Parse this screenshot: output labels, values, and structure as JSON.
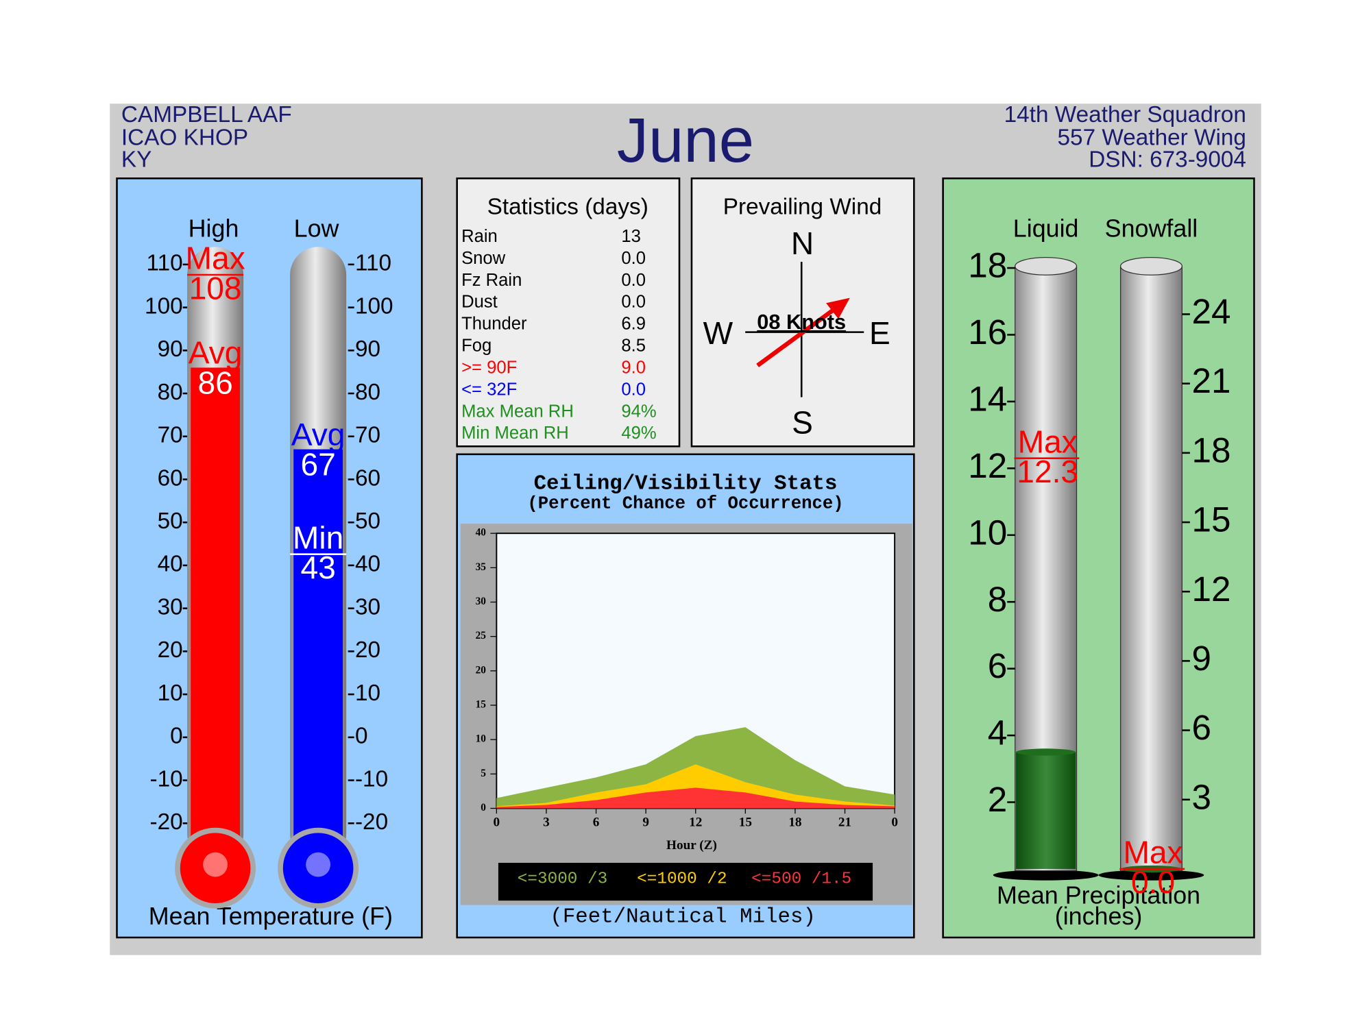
{
  "header": {
    "station": [
      "CAMPBELL AAF",
      "ICAO KHOP",
      "KY"
    ],
    "title": "June",
    "unit": [
      "14th Weather Squadron",
      "557 Weather Wing",
      "DSN: 673-9004"
    ]
  },
  "statistics": {
    "title": "Statistics (days)",
    "rows": [
      {
        "label": "Rain",
        "value": "13",
        "color": "#000000"
      },
      {
        "label": "Snow",
        "value": "0.0",
        "color": "#000000"
      },
      {
        "label": "Fz Rain",
        "value": "0.0",
        "color": "#000000"
      },
      {
        "label": "Dust",
        "value": "0.0",
        "color": "#000000"
      },
      {
        "label": "Thunder",
        "value": "6.9",
        "color": "#000000"
      },
      {
        "label": "Fog",
        "value": "8.5",
        "color": "#000000"
      },
      {
        "label": ">= 90F",
        "value": "9.0",
        "color": "#ff0000"
      },
      {
        "label": "<= 32F",
        "value": "0.0",
        "color": "#0000ff"
      },
      {
        "label": "Max Mean RH",
        "value": "94%",
        "color": "#1f8f1f"
      },
      {
        "label": "Min Mean RH",
        "value": "49%",
        "color": "#1f8f1f"
      }
    ]
  },
  "wind": {
    "title": "Prevailing Wind",
    "north": "N",
    "south": "S",
    "west": "W",
    "east": "E",
    "speed": "08 Knots"
  },
  "chart_data": [
    {
      "type": "thermometer",
      "title": "Mean Temperature (F)",
      "ylim": [
        -20,
        110
      ],
      "yticks": [
        -20,
        -10,
        0,
        10,
        20,
        30,
        40,
        50,
        60,
        70,
        80,
        90,
        100,
        110
      ],
      "series": [
        {
          "name": "High",
          "color": "#ff0000",
          "mean": {
            "label": "Avg",
            "value": 86
          },
          "extreme": {
            "label": "Max",
            "value": 108
          }
        },
        {
          "name": "Low",
          "color": "#0000ff",
          "mean": {
            "label": "Avg",
            "value": 67
          },
          "extreme": {
            "label": "Min",
            "value": 43
          }
        }
      ]
    },
    {
      "type": "area",
      "title": "Ceiling/Visibility Stats",
      "subtitle": "(Percent Chance of Occurrence)",
      "x_label": "Hour (Z)",
      "caption": "(Feet/Nautical Miles)",
      "x": [
        0,
        3,
        6,
        9,
        12,
        15,
        18,
        21,
        24
      ],
      "xlim": [
        0,
        24
      ],
      "xticks": [
        0,
        3,
        6,
        9,
        12,
        15,
        18,
        21,
        {
          "value": 24,
          "label": "0"
        }
      ],
      "ylim": [
        0,
        40
      ],
      "yticks": [
        0,
        5,
        10,
        15,
        20,
        25,
        30,
        35,
        40
      ],
      "series": [
        {
          "name": "<=3000 /3",
          "color": "#8db543",
          "values": [
            1.5,
            3,
            4.5,
            6.4,
            10.5,
            11.8,
            7,
            3.2,
            2
          ]
        },
        {
          "name": "<=1000 /2",
          "color": "#ffcc00",
          "values": [
            0.3,
            0.8,
            2.3,
            3.5,
            6.4,
            3.8,
            2,
            1,
            0.4
          ]
        },
        {
          "name": "<=500 /1.5",
          "color": "#ff3333",
          "values": [
            0.2,
            0.5,
            1.2,
            2.3,
            3,
            2.3,
            1,
            0.5,
            0.3
          ]
        }
      ]
    },
    {
      "type": "cylinder",
      "title": "Mean Precipitation",
      "subtitle": "(inches)",
      "ylim": [
        0,
        18
      ],
      "yticks": [
        2,
        4,
        6,
        8,
        10,
        12,
        14,
        16,
        18
      ],
      "y2lim": [
        0,
        26
      ],
      "y2ticks": [
        3,
        6,
        9,
        12,
        15,
        18,
        21,
        24
      ],
      "series": [
        {
          "name": "Liquid",
          "color": "#1e6e1e",
          "values": [
            3.5
          ],
          "extreme": {
            "label": "Max",
            "value": 12.3
          }
        },
        {
          "name": "Snowfall",
          "color": "#1e6e1e",
          "axis": "y2",
          "values": [
            0
          ],
          "extreme": {
            "label": "Max",
            "value": 0,
            "value_label": "0.0"
          }
        }
      ]
    }
  ]
}
